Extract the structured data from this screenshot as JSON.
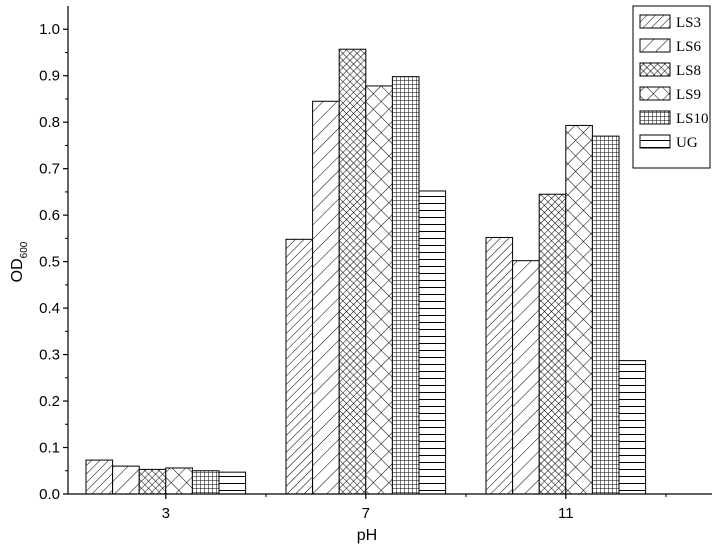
{
  "chart_data": {
    "type": "bar",
    "title": "",
    "xlabel": "pH",
    "ylabel": "OD",
    "ylabel_sub": "600",
    "categories": [
      "3",
      "7",
      "11"
    ],
    "ylim": [
      0,
      1.05
    ],
    "yticks": [
      0.0,
      0.1,
      0.2,
      0.3,
      0.4,
      0.5,
      0.6,
      0.7,
      0.8,
      0.9,
      1.0
    ],
    "ytick_labels": [
      "0.0",
      "0.1",
      "0.2",
      "0.3",
      "0.4",
      "0.5",
      "0.6",
      "0.7",
      "0.8",
      "0.9",
      "1.0"
    ],
    "grid": false,
    "legend_position": "top-right",
    "series": [
      {
        "name": "LS3",
        "pattern": "diag-up",
        "values": [
          0.073,
          0.548,
          0.552
        ]
      },
      {
        "name": "LS6",
        "pattern": "diag-up-wide",
        "values": [
          0.06,
          0.845,
          0.502
        ]
      },
      {
        "name": "LS8",
        "pattern": "crosshatch",
        "values": [
          0.053,
          0.957,
          0.645
        ]
      },
      {
        "name": "LS9",
        "pattern": "diag-cross-wide",
        "values": [
          0.056,
          0.878,
          0.793
        ]
      },
      {
        "name": "LS10",
        "pattern": "grid",
        "values": [
          0.05,
          0.898,
          0.77
        ]
      },
      {
        "name": "UG",
        "pattern": "horizontal",
        "values": [
          0.047,
          0.652,
          0.287
        ]
      }
    ]
  }
}
